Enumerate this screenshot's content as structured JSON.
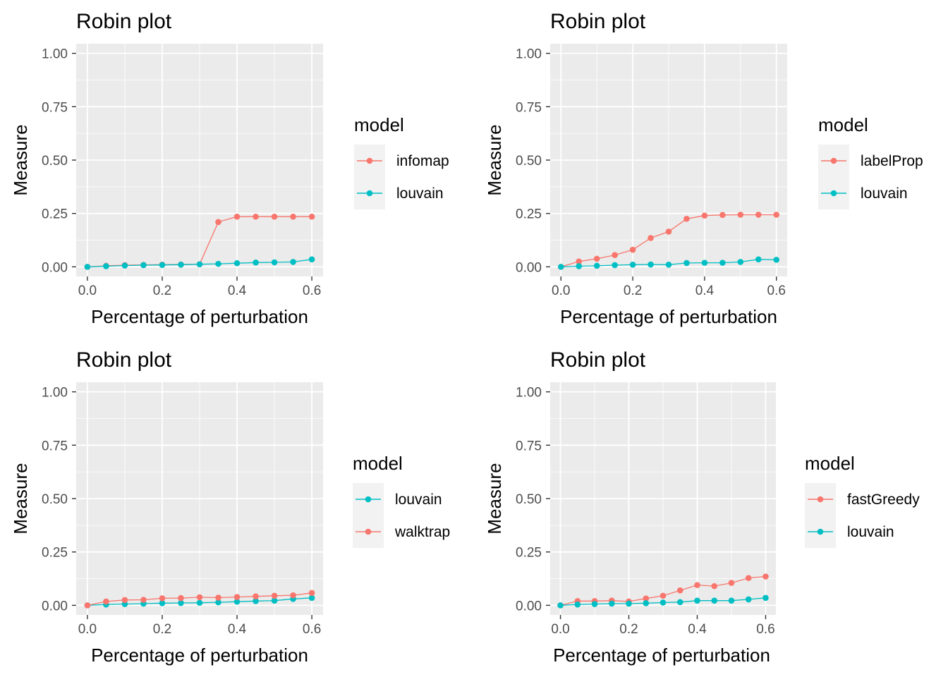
{
  "colors": {
    "red": "#F8766D",
    "teal": "#00BFC4",
    "panel_bg": "#EBEBEB",
    "grid": "#FFFFFF",
    "legend_key_bg": "#F2F2F2"
  },
  "chart_data": [
    {
      "type": "line",
      "title": "Robin plot",
      "xlabel": "Percentage of perturbation",
      "ylabel": "Measure",
      "xlim": [
        -0.03,
        0.63
      ],
      "ylim": [
        -0.045,
        1.045
      ],
      "x_ticks": [
        "0.0",
        "0.2",
        "0.4",
        "0.6"
      ],
      "y_ticks": [
        "0.00",
        "0.25",
        "0.50",
        "0.75",
        "1.00"
      ],
      "legend_title": "model",
      "x": [
        0,
        0.05,
        0.1,
        0.15,
        0.2,
        0.25,
        0.3,
        0.35,
        0.4,
        0.45,
        0.5,
        0.55,
        0.6
      ],
      "series": [
        {
          "name": "infomap",
          "color": "#F8766D",
          "values": [
            0,
            0.005,
            0.008,
            0.009,
            0.01,
            0.011,
            0.012,
            0.21,
            0.235,
            0.235,
            0.235,
            0.235,
            0.235
          ]
        },
        {
          "name": "louvain",
          "color": "#00BFC4",
          "values": [
            0,
            0.003,
            0.006,
            0.008,
            0.009,
            0.01,
            0.012,
            0.014,
            0.017,
            0.02,
            0.021,
            0.023,
            0.035
          ]
        }
      ]
    },
    {
      "type": "line",
      "title": "Robin plot",
      "xlabel": "Percentage of perturbation",
      "ylabel": "Measure",
      "xlim": [
        -0.03,
        0.63
      ],
      "ylim": [
        -0.045,
        1.045
      ],
      "x_ticks": [
        "0.0",
        "0.2",
        "0.4",
        "0.6"
      ],
      "y_ticks": [
        "0.00",
        "0.25",
        "0.50",
        "0.75",
        "1.00"
      ],
      "legend_title": "model",
      "x": [
        0,
        0.05,
        0.1,
        0.15,
        0.2,
        0.25,
        0.3,
        0.35,
        0.4,
        0.45,
        0.5,
        0.55,
        0.6
      ],
      "series": [
        {
          "name": "labelProp",
          "color": "#F8766D",
          "values": [
            0,
            0.025,
            0.038,
            0.055,
            0.08,
            0.135,
            0.165,
            0.225,
            0.24,
            0.243,
            0.244,
            0.244,
            0.244
          ]
        },
        {
          "name": "louvain",
          "color": "#00BFC4",
          "values": [
            0,
            0.003,
            0.005,
            0.008,
            0.01,
            0.011,
            0.01,
            0.018,
            0.019,
            0.019,
            0.023,
            0.035,
            0.033
          ]
        }
      ]
    },
    {
      "type": "line",
      "title": "Robin plot",
      "xlabel": "Percentage of perturbation",
      "ylabel": "Measure",
      "xlim": [
        -0.03,
        0.63
      ],
      "ylim": [
        -0.045,
        1.045
      ],
      "x_ticks": [
        "0.0",
        "0.2",
        "0.4",
        "0.6"
      ],
      "y_ticks": [
        "0.00",
        "0.25",
        "0.50",
        "0.75",
        "1.00"
      ],
      "legend_title": "model",
      "x": [
        0,
        0.05,
        0.1,
        0.15,
        0.2,
        0.25,
        0.3,
        0.35,
        0.4,
        0.45,
        0.5,
        0.55,
        0.6
      ],
      "series": [
        {
          "name": "louvain",
          "color": "#00BFC4",
          "values": [
            0,
            0.004,
            0.006,
            0.008,
            0.01,
            0.011,
            0.012,
            0.014,
            0.017,
            0.02,
            0.022,
            0.03,
            0.035
          ]
        },
        {
          "name": "walktrap",
          "color": "#F8766D",
          "values": [
            0,
            0.018,
            0.025,
            0.026,
            0.033,
            0.034,
            0.038,
            0.036,
            0.039,
            0.042,
            0.045,
            0.047,
            0.058
          ]
        }
      ]
    },
    {
      "type": "line",
      "title": "Robin plot",
      "xlabel": "Percentage of perturbation",
      "ylabel": "Measure",
      "xlim": [
        -0.03,
        0.63
      ],
      "ylim": [
        -0.045,
        1.045
      ],
      "x_ticks": [
        "0.0",
        "0.2",
        "0.4",
        "0.6"
      ],
      "y_ticks": [
        "0.00",
        "0.25",
        "0.50",
        "0.75",
        "1.00"
      ],
      "legend_title": "model",
      "x": [
        0,
        0.05,
        0.1,
        0.15,
        0.2,
        0.25,
        0.3,
        0.35,
        0.4,
        0.45,
        0.5,
        0.55,
        0.6
      ],
      "series": [
        {
          "name": "fastGreedy",
          "color": "#F8766D",
          "values": [
            0,
            0.02,
            0.02,
            0.022,
            0.018,
            0.032,
            0.045,
            0.07,
            0.095,
            0.09,
            0.105,
            0.128,
            0.135
          ]
        },
        {
          "name": "louvain",
          "color": "#00BFC4",
          "values": [
            0,
            0.004,
            0.006,
            0.008,
            0.008,
            0.01,
            0.013,
            0.015,
            0.022,
            0.022,
            0.022,
            0.028,
            0.035
          ]
        }
      ]
    }
  ]
}
